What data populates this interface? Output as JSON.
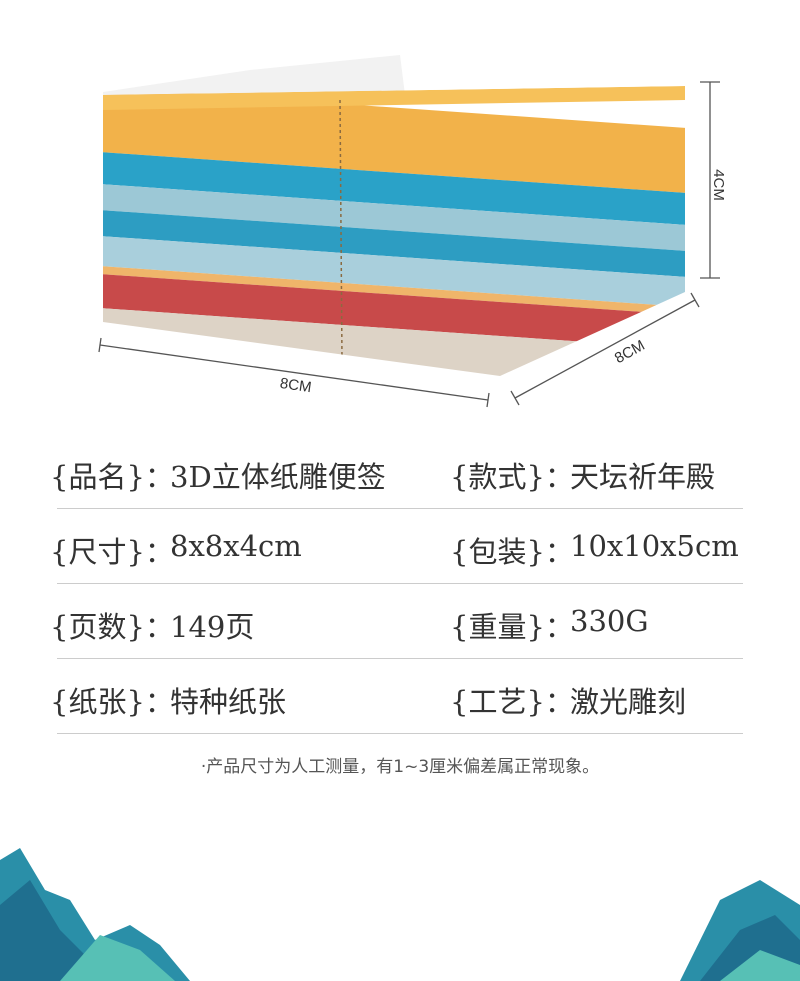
{
  "dimensions": {
    "width": "8CM",
    "depth": "8CM",
    "height": "4CM"
  },
  "specs": [
    [
      {
        "label": "{品名}：",
        "value": "3D立体纸雕便签"
      },
      {
        "label": "{款式}：",
        "value": "天坛祈年殿"
      }
    ],
    [
      {
        "label": "{尺寸}：",
        "value": "8x8x4cm"
      },
      {
        "label": "{包装}：",
        "value": "10x10x5cm"
      }
    ],
    [
      {
        "label": "{页数}：",
        "value": "149页"
      },
      {
        "label": "{重量}：",
        "value": "330G"
      }
    ],
    [
      {
        "label": "{纸张}：",
        "value": "特种纸张"
      },
      {
        "label": "{工艺}：",
        "value": "激光雕刻"
      }
    ]
  ],
  "note": "·产品尺寸为人工测量，有1~3厘米偏差属正常现象。"
}
